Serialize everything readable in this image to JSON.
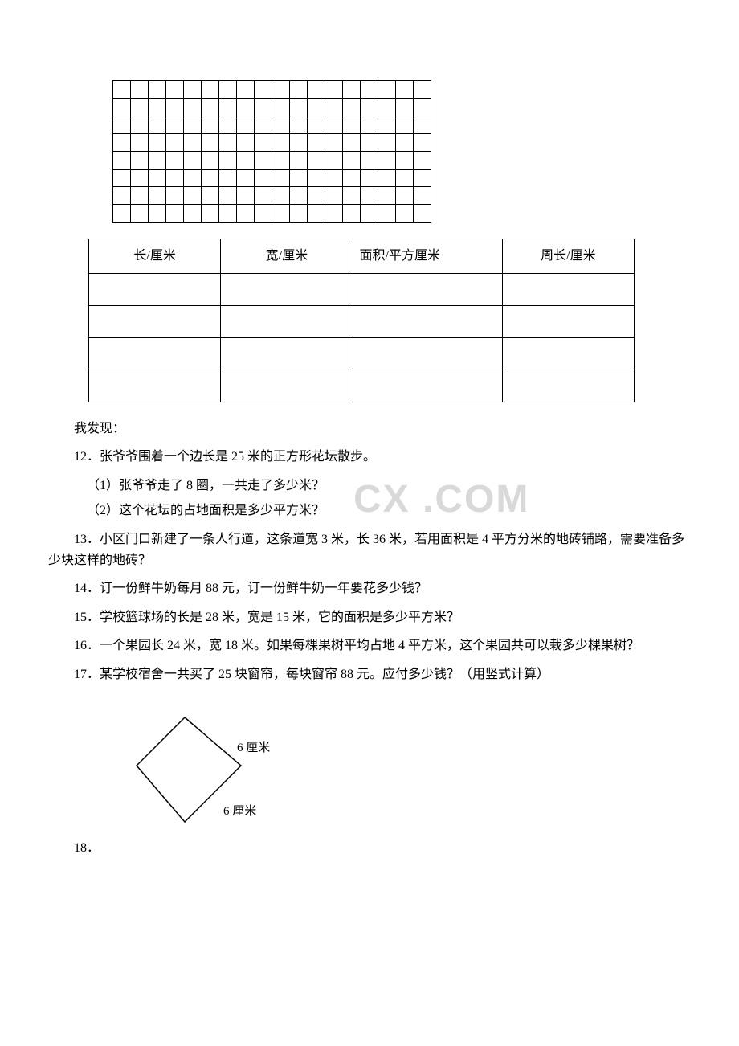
{
  "grid": {
    "rows": 8,
    "cols": 18
  },
  "dataTable": {
    "headers": {
      "length": "长/厘米",
      "width": "宽/厘米",
      "area": "面积/平方厘米",
      "perimeter": "周长/厘米"
    },
    "emptyRows": 4
  },
  "discover": "我发现：",
  "q12": {
    "main": "12．张爷爷围着一个边长是 25 米的正方形花坛散步。",
    "sub1": "（1）张爷爷走了 8 圈，一共走了多少米？",
    "sub2": "（2）这个花坛的占地面积是多少平方米？"
  },
  "q13": "13．小区门口新建了一条人行道，这条道宽 3 米，长 36 米，若用面积是 4 平方分米的地砖铺路，需要准备多少块这样的地砖？",
  "q14": "14．订一份鲜牛奶每月 88 元，订一份鲜牛奶一年要花多少钱？",
  "q15": "15．学校篮球场的长是 28 米，宽是 15 米，它的面积是多少平方米？",
  "q16": "16．一个果园长 24 米，宽 18 米。如果每棵果树平均占地 4 平方米，这个果园共可以栽多少棵果树？",
  "q17": "17．某学校宿舍一共买了 25 块窗帘，每块窗帘 88 元。应付多少钱？（用竖式计算）",
  "q18": {
    "num": "18．",
    "label1": "6 厘米",
    "label2": "6 厘米"
  },
  "watermark": ".COM",
  "watermarkPrefix": "CX"
}
